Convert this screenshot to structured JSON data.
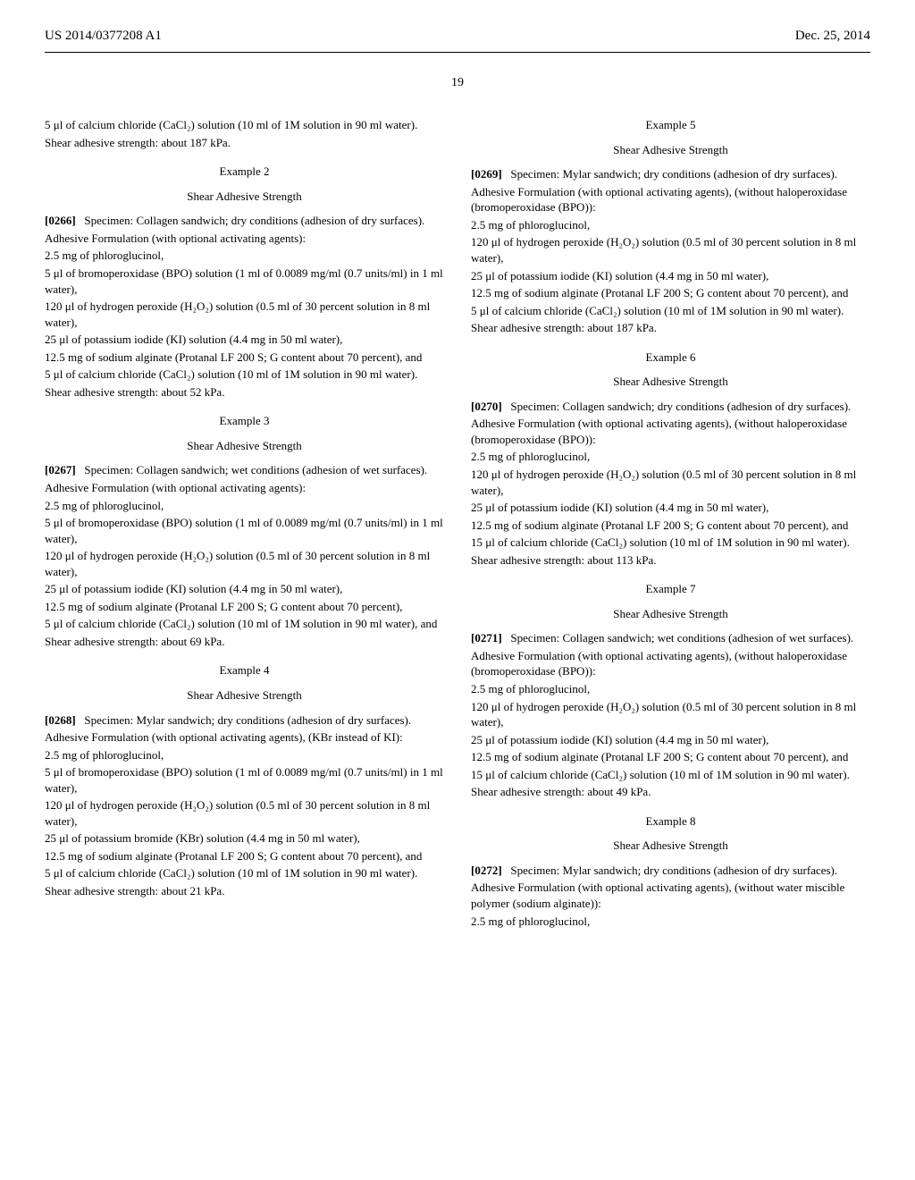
{
  "header": {
    "left": "US 2014/0377208 A1",
    "right": "Dec. 25, 2014"
  },
  "pageNumber": "19",
  "leftColumn": {
    "intro1": "5 μl of calcium chloride (CaCl₂) solution (10 ml of 1M solution in 90 ml water).",
    "intro2": "Shear adhesive strength: about 187 kPa.",
    "ex2": {
      "title": "Example 2",
      "subtitle": "Shear Adhesive Strength",
      "bracket": "[0266]",
      "spec1": "Specimen: Collagen sandwich; dry conditions (adhesion of dry surfaces).",
      "l1": "Adhesive Formulation (with optional activating agents):",
      "l2": "2.5 mg of phloroglucinol,",
      "l3": "5 μl of bromoperoxidase (BPO) solution (1 ml of 0.0089 mg/ml (0.7 units/ml) in 1 ml water),",
      "l4": "120 μl of hydrogen peroxide (H₂O₂) solution (0.5 ml of 30 percent solution in 8 ml water),",
      "l5": "25 μl of potassium iodide (KI) solution (4.4 mg in 50 ml water),",
      "l6": "12.5 mg of sodium alginate (Protanal LF 200 S; G content about 70 percent), and",
      "l7": "5 μl of calcium chloride (CaCl₂) solution (10 ml of 1M solution in 90 ml water).",
      "l8": "Shear adhesive strength: about 52 kPa."
    },
    "ex3": {
      "title": "Example 3",
      "subtitle": "Shear Adhesive Strength",
      "bracket": "[0267]",
      "spec1": "Specimen: Collagen sandwich; wet conditions (adhesion of wet surfaces).",
      "l1": "Adhesive Formulation (with optional activating agents):",
      "l2": "2.5 mg of phloroglucinol,",
      "l3": "5 μl of bromoperoxidase (BPO) solution (1 ml of 0.0089 mg/ml (0.7 units/ml) in 1 ml water),",
      "l4": "120 μl of hydrogen peroxide (H₂O₂) solution (0.5 ml of 30 percent solution in 8 ml water),",
      "l5": "25 μl of potassium iodide (KI) solution (4.4 mg in 50 ml water),",
      "l6": "12.5 mg of sodium alginate (Protanal LF 200 S; G content about 70 percent),",
      "l7": "5 μl of calcium chloride (CaCl₂) solution (10 ml of 1M solution in 90 ml water), and",
      "l8": "Shear adhesive strength: about 69 kPa."
    },
    "ex4": {
      "title": "Example 4",
      "subtitle": "Shear Adhesive Strength",
      "bracket": "[0268]",
      "spec1": "Specimen: Mylar sandwich; dry conditions (adhesion of dry surfaces).",
      "l1": "Adhesive Formulation (with optional activating agents), (KBr instead of KI):",
      "l2": "2.5 mg of phloroglucinol,",
      "l3": "5 μl of bromoperoxidase (BPO) solution (1 ml of 0.0089 mg/ml (0.7 units/ml) in 1 ml water),",
      "l4": "120 μl of hydrogen peroxide (H₂O₂) solution (0.5 ml of 30 percent solution in 8 ml water),",
      "l5": "25 μl of potassium bromide (KBr) solution (4.4 mg in 50 ml water),",
      "l6": "12.5 mg of sodium alginate (Protanal LF 200 S; G content about 70 percent), and",
      "l7": "5 μl of calcium chloride (CaCl₂) solution (10 ml of 1M solution in 90 ml water).",
      "l8": "Shear adhesive strength: about 21 kPa."
    }
  },
  "rightColumn": {
    "ex5": {
      "title": "Example 5",
      "subtitle": "Shear Adhesive Strength",
      "bracket": "[0269]",
      "spec1": "Specimen: Mylar sandwich; dry conditions (adhesion of dry surfaces).",
      "l1": "Adhesive Formulation (with optional activating agents), (without haloperoxidase (bromoperoxidase (BPO)):",
      "l2": "2.5 mg of phloroglucinol,",
      "l3": "120 μl of hydrogen peroxide (H₂O₂) solution (0.5 ml of 30 percent solution in 8 ml water),",
      "l4": "25 μl of potassium iodide (KI) solution (4.4 mg in 50 ml water),",
      "l5": "12.5 mg of sodium alginate (Protanal LF 200 S; G content about 70 percent), and",
      "l6": "5 μl of calcium chloride (CaCl₂) solution (10 ml of 1M solution in 90 ml water).",
      "l7": "Shear adhesive strength: about 187 kPa."
    },
    "ex6": {
      "title": "Example 6",
      "subtitle": "Shear Adhesive Strength",
      "bracket": "[0270]",
      "spec1": "Specimen: Collagen sandwich; dry conditions (adhesion of dry surfaces).",
      "l1": "Adhesive Formulation (with optional activating agents), (without haloperoxidase (bromoperoxidase (BPO)):",
      "l2": "2.5 mg of phloroglucinol,",
      "l3": "120 μl of hydrogen peroxide (H₂O₂) solution (0.5 ml of 30 percent solution in 8 ml water),",
      "l4": "25 μl of potassium iodide (KI) solution (4.4 mg in 50 ml water),",
      "l5": "12.5 mg of sodium alginate (Protanal LF 200 S; G content about 70 percent), and",
      "l6": "15 μl of calcium chloride (CaCl₂) solution (10 ml of 1M solution in 90 ml water).",
      "l7": "Shear adhesive strength: about 113 kPa."
    },
    "ex7": {
      "title": "Example 7",
      "subtitle": "Shear Adhesive Strength",
      "bracket": "[0271]",
      "spec1": "Specimen: Collagen sandwich; wet conditions (adhesion of wet surfaces).",
      "l1": "Adhesive Formulation (with optional activating agents), (without haloperoxidase (bromoperoxidase (BPO)):",
      "l2": "2.5 mg of phloroglucinol,",
      "l3": "120 μl of hydrogen peroxide (H₂O₂) solution (0.5 ml of 30 percent solution in 8 ml water),",
      "l4": "25 μl of potassium iodide (KI) solution (4.4 mg in 50 ml water),",
      "l5": "12.5 mg of sodium alginate (Protanal LF 200 S; G content about 70 percent), and",
      "l6": "15 μl of calcium chloride (CaCl₂) solution (10 ml of 1M solution in 90 ml water).",
      "l7": "Shear adhesive strength: about 49 kPa."
    },
    "ex8": {
      "title": "Example 8",
      "subtitle": "Shear Adhesive Strength",
      "bracket": "[0272]",
      "spec1": "Specimen: Mylar sandwich; dry conditions (adhesion of dry surfaces).",
      "l1": "Adhesive Formulation (with optional activating agents), (without water miscible polymer (sodium alginate)):",
      "l2": "2.5 mg of phloroglucinol,"
    }
  }
}
